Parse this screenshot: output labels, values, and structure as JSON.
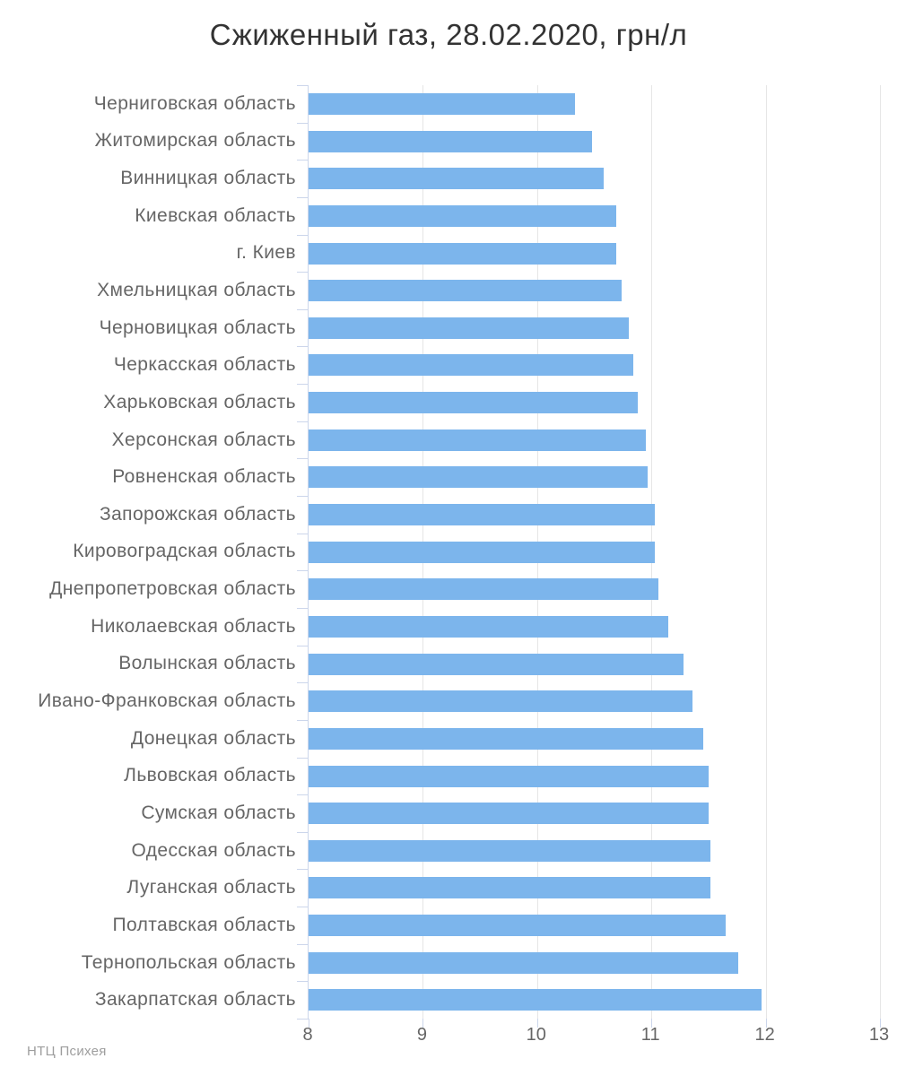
{
  "chart_data": {
    "type": "bar",
    "orientation": "horizontal",
    "title": "Сжиженный газ, 28.02.2020, грн/л",
    "date": "28.02.2020",
    "unit": "грн/л",
    "categories": [
      "Черниговская область",
      "Житомирская область",
      "Винницкая область",
      "Киевская область",
      "г. Киев",
      "Хмельницкая область",
      "Черновицкая область",
      "Черкасская область",
      "Харьковская область",
      "Херсонская область",
      "Ровненская область",
      "Запорожская область",
      "Кировоградская область",
      "Днепропетровская область",
      "Николаевская область",
      "Волынская область",
      "Ивано-Франковская область",
      "Донецкая область",
      "Львовская область",
      "Сумская область",
      "Одесская область",
      "Луганская область",
      "Полтавская область",
      "Тернопольская область",
      "Закарпатская область"
    ],
    "values": [
      10.33,
      10.48,
      10.58,
      10.69,
      10.69,
      10.74,
      10.8,
      10.84,
      10.88,
      10.95,
      10.97,
      11.03,
      11.03,
      11.06,
      11.15,
      11.28,
      11.36,
      11.45,
      11.5,
      11.5,
      11.52,
      11.52,
      11.65,
      11.76,
      11.96
    ],
    "xlabel": "",
    "ylabel": "",
    "value_axis": {
      "min": 8,
      "max": 13,
      "ticks": [
        8,
        9,
        10,
        11,
        12,
        13
      ]
    },
    "grid": true,
    "legend": "none",
    "bar_color": "#7cb5ec",
    "axis_line_color": "#ccd6eb",
    "gridline_color": "#e6e6e6",
    "label_color": "#666666",
    "title_color": "#333333"
  },
  "footer": {
    "text": "НТЦ Психея",
    "color": "#9e9e9e"
  }
}
